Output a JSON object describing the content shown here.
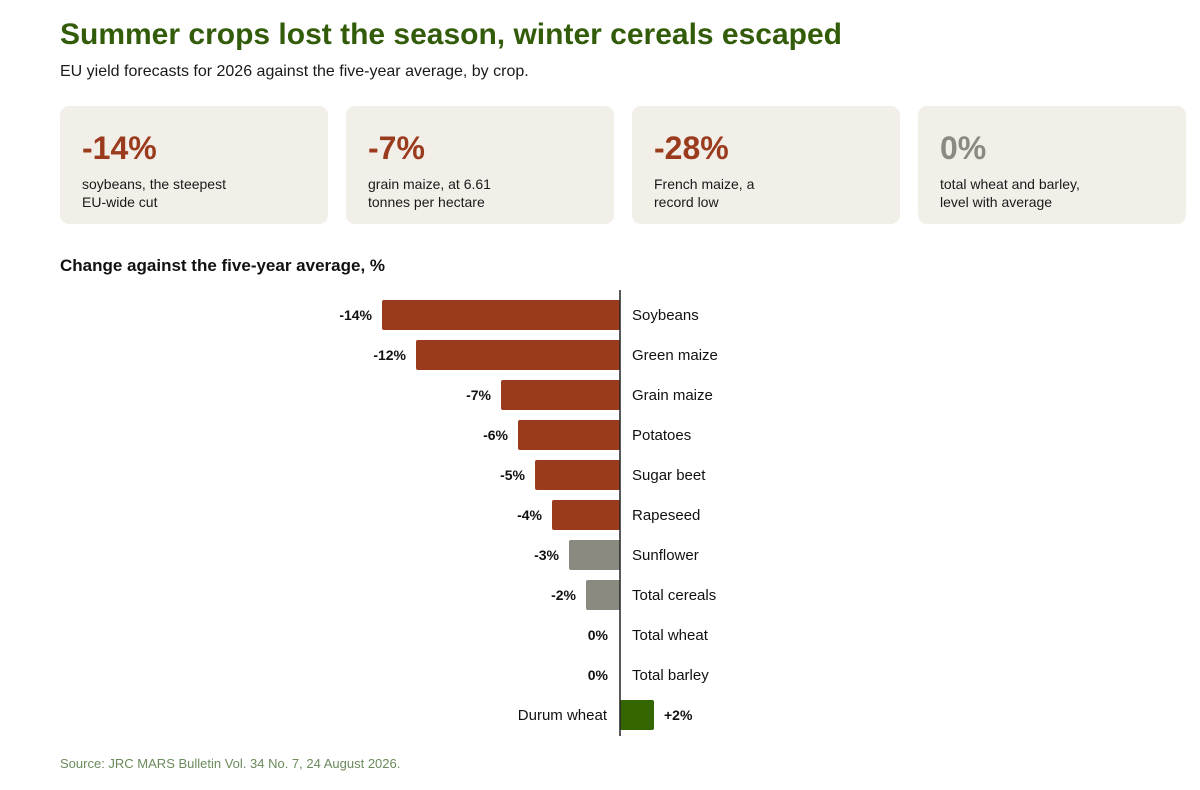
{
  "header": {
    "title": "Summer crops lost the season, winter cereals escaped",
    "subtitle": "EU yield forecasts for 2026 against the five-year average, by crop."
  },
  "cards": [
    {
      "value": "-14%",
      "description": "soybeans, the steepest\nEU-wide cut",
      "color": "#9a3b1e"
    },
    {
      "value": "-7%",
      "description": "grain maize, at 6.61\ntonnes per hectare",
      "color": "#9a3b1e"
    },
    {
      "value": "-28%",
      "description": "French maize, a\nrecord low",
      "color": "#9a3b1e"
    },
    {
      "value": "0%",
      "description": "total wheat and barley,\nlevel with average",
      "color": "#8a8a80"
    }
  ],
  "chart_data": {
    "type": "bar",
    "orientation": "horizontal",
    "title": "Change against the five-year average, %",
    "categories": [
      "Soybeans",
      "Green maize",
      "Grain maize",
      "Potatoes",
      "Sugar beet",
      "Rapeseed",
      "Sunflower",
      "Total cereals",
      "Total wheat",
      "Total barley",
      "Durum wheat"
    ],
    "values": [
      -14,
      -12,
      -7,
      -6,
      -5,
      -4,
      -3,
      -2,
      0,
      0,
      2
    ],
    "value_labels": [
      "-14%",
      "-12%",
      "-7%",
      "-6%",
      "-5%",
      "-4%",
      "-3%",
      "-2%",
      "0%",
      "0%",
      "+2%"
    ],
    "grid": false,
    "legend": "none",
    "colors": {
      "cut": "#9a3b1e",
      "minor": "#8a8a80",
      "gain": "#336600",
      "axis": "#222222"
    }
  },
  "footer": {
    "source": "Source: JRC MARS Bulletin Vol. 34 No. 7, 24 August 2026."
  }
}
